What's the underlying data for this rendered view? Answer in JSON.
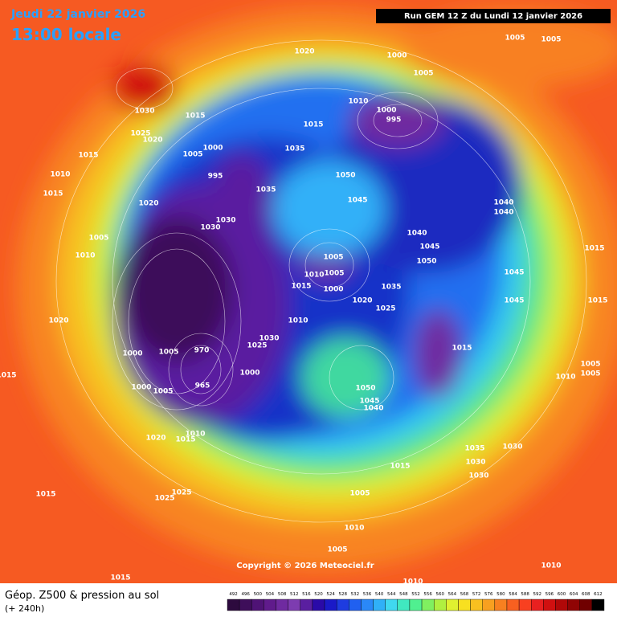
{
  "header": {
    "date": "Jeudi 22 janvier 2026",
    "time": "13:00 locale",
    "run": "Run GEM 12 Z du Lundi 12 janvier 2026"
  },
  "copyright": "Copyright © 2026 Meteociel.fr",
  "footer": {
    "title": "Géop. Z500 & pression au sol",
    "lead": "(+ 240h)"
  },
  "legend": {
    "levels": [
      492,
      496,
      500,
      504,
      508,
      512,
      516,
      520,
      524,
      528,
      532,
      536,
      540,
      544,
      548,
      552,
      556,
      560,
      564,
      568,
      572,
      576,
      580,
      584,
      588,
      592,
      596,
      600,
      604,
      608,
      612
    ],
    "colors": [
      "#2d0a3e",
      "#3e0e5a",
      "#4f1376",
      "#601b8c",
      "#6f2aa0",
      "#7d3cb0",
      "#5a1fa0",
      "#2a0aa8",
      "#1a1ac8",
      "#1e3ce0",
      "#2060f0",
      "#2a88f8",
      "#30b0f8",
      "#40d8f0",
      "#40e8c0",
      "#50f090",
      "#80f060",
      "#b0f040",
      "#e0f030",
      "#f8e020",
      "#f8c020",
      "#f8a020",
      "#f88020",
      "#f86020",
      "#f84020",
      "#e82020",
      "#d01010",
      "#b00808",
      "#900404",
      "#700000",
      "#000000"
    ]
  },
  "pressure_labels": [
    1020,
    1000,
    1005,
    1005,
    1005,
    1030,
    1015,
    1025,
    1020,
    1015,
    1005,
    1000,
    1015,
    1010,
    1000,
    995,
    1035,
    1050,
    995,
    1035,
    1045,
    1010,
    1015,
    1020,
    1030,
    1030,
    1005,
    1010,
    1040,
    1045,
    1050,
    1040,
    1040,
    1005,
    1010,
    1005,
    1000,
    1015,
    1045,
    1045,
    1015,
    1015,
    1035,
    1020,
    1025,
    1010,
    1020,
    1030,
    1025,
    970,
    1005,
    1000,
    1015,
    1005,
    1005,
    1010,
    1015,
    1000,
    965,
    1000,
    1005,
    1050,
    1045,
    1040,
    1020,
    1015,
    1010,
    1035,
    1030,
    1030,
    1030,
    1015,
    1015,
    1025,
    1025,
    1005,
    1010,
    1005,
    1010,
    1010,
    1015
  ]
}
